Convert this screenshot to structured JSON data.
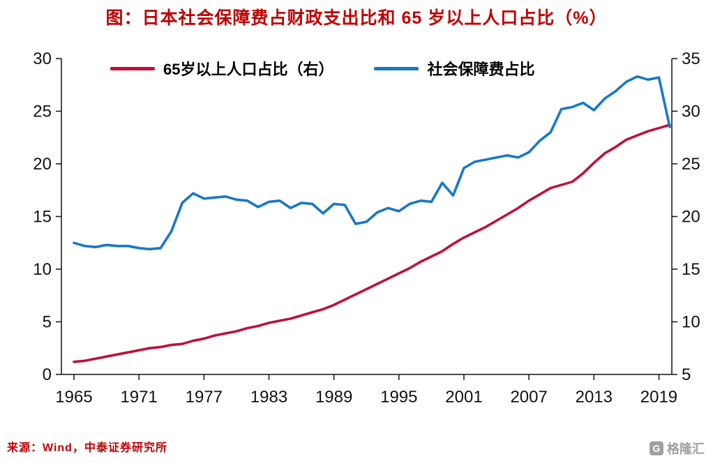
{
  "title": "图：日本社会保障费占财政支出比和 65 岁以上人口占比（%）",
  "source": "来源：Wind，中泰证券研究所",
  "watermark": "格隆汇",
  "watermark_icon": "G",
  "colors": {
    "title_red": "#c00000",
    "source_red": "#c00000",
    "axis_black": "#111111",
    "series_red": "#c0103a",
    "series_blue": "#1778c8",
    "watermark_gray": "#a0a0a0"
  },
  "chart_data": {
    "type": "line",
    "title": "图：日本社会保障费占财政支出比和 65 岁以上人口占比（%）",
    "x": [
      1965,
      1966,
      1967,
      1968,
      1969,
      1970,
      1971,
      1972,
      1973,
      1974,
      1975,
      1976,
      1977,
      1978,
      1979,
      1980,
      1981,
      1982,
      1983,
      1984,
      1985,
      1986,
      1987,
      1988,
      1989,
      1990,
      1991,
      1992,
      1993,
      1994,
      1995,
      1996,
      1997,
      1998,
      1999,
      2000,
      2001,
      2002,
      2003,
      2004,
      2005,
      2006,
      2007,
      2008,
      2009,
      2010,
      2011,
      2012,
      2013,
      2014,
      2015,
      2016,
      2017,
      2018,
      2019,
      2020
    ],
    "x_ticks": [
      1965,
      1971,
      1977,
      1983,
      1989,
      1995,
      2001,
      2007,
      2013,
      2019
    ],
    "left_axis": {
      "min": 0,
      "max": 30,
      "ticks": [
        0,
        5,
        10,
        15,
        20,
        25,
        30
      ]
    },
    "right_axis": {
      "min": 5,
      "max": 35,
      "ticks": [
        5,
        10,
        15,
        20,
        25,
        30,
        35
      ]
    },
    "grid": false,
    "legend_position": "top",
    "series": [
      {
        "name": "65岁以上人口占比（右）",
        "axis": "right",
        "color": "#c0103a",
        "values": [
          6.2,
          6.3,
          6.5,
          6.7,
          6.9,
          7.1,
          7.3,
          7.5,
          7.6,
          7.8,
          7.9,
          8.2,
          8.4,
          8.7,
          8.9,
          9.1,
          9.4,
          9.6,
          9.9,
          10.1,
          10.3,
          10.6,
          10.9,
          11.2,
          11.6,
          12.1,
          12.6,
          13.1,
          13.6,
          14.1,
          14.6,
          15.1,
          15.7,
          16.2,
          16.7,
          17.4,
          18.0,
          18.5,
          19.0,
          19.6,
          20.2,
          20.8,
          21.5,
          22.1,
          22.7,
          23.0,
          23.3,
          24.1,
          25.1,
          26.0,
          26.6,
          27.3,
          27.7,
          28.1,
          28.4,
          28.7
        ]
      },
      {
        "name": "社会保障费占比",
        "axis": "left",
        "color": "#1778c8",
        "values": [
          12.5,
          12.2,
          12.1,
          12.3,
          12.2,
          12.2,
          12.0,
          11.9,
          12.0,
          13.6,
          16.3,
          17.2,
          16.7,
          16.8,
          16.9,
          16.6,
          16.5,
          15.9,
          16.4,
          16.5,
          15.8,
          16.3,
          16.2,
          15.3,
          16.2,
          16.1,
          14.3,
          14.5,
          15.4,
          15.8,
          15.5,
          16.2,
          16.5,
          16.4,
          18.2,
          17.0,
          19.6,
          20.2,
          20.4,
          20.6,
          20.8,
          20.6,
          21.1,
          22.2,
          23.0,
          25.2,
          25.4,
          25.8,
          25.1,
          26.2,
          26.9,
          27.8,
          28.3,
          28.0,
          28.2,
          23.5
        ]
      }
    ]
  }
}
